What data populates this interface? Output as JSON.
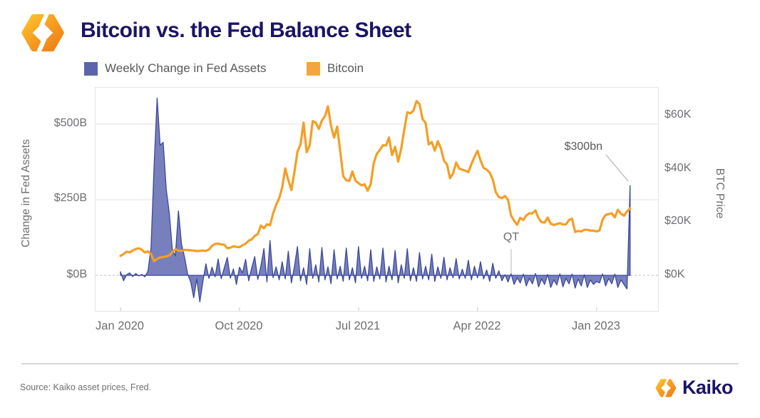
{
  "header": {
    "title": "Bitcoin vs. the Fed Balance Sheet"
  },
  "legend": [
    {
      "label": "Weekly Change in Fed Assets",
      "color": "#5a65ab"
    },
    {
      "label": "Bitcoin",
      "color": "#f5a53d"
    }
  ],
  "chart_data": {
    "type": "line",
    "subtype": "combo-area-line",
    "title": "Bitcoin vs. the Fed Balance Sheet",
    "x": {
      "unit": "weeks since Jan 2020",
      "label_ticks": [
        "Jan 2020",
        "Oct 2020",
        "Jul 2021",
        "Apr 2022",
        "Jan 2023"
      ],
      "tick_weeks": [
        0,
        39,
        78,
        117,
        156
      ],
      "total_weeks": 168
    },
    "y_left": {
      "label": "Change in Fed Assets",
      "ticks": [
        "$500B",
        "$250B",
        "$0B"
      ],
      "tick_values": [
        500,
        250,
        0
      ],
      "range": [
        -110,
        620
      ],
      "grid": "solid at 250 and 500, dashed at 0"
    },
    "y_right": {
      "label": "BTC Price",
      "ticks": [
        "$60K",
        "$40K",
        "$20K",
        "$0K"
      ],
      "tick_values": [
        60,
        40,
        20,
        0
      ],
      "range": [
        -33,
        70
      ]
    },
    "series": [
      {
        "name": "Weekly Change in Fed Assets",
        "type": "area",
        "axis": "left",
        "unit": "$B",
        "color": "#6b75b7",
        "stroke": "#3c489c",
        "values": [
          12,
          -18,
          2,
          8,
          -4,
          6,
          -2,
          3,
          -5,
          14,
          90,
          360,
          586,
          430,
          440,
          285,
          205,
          83,
          65,
          213,
          103,
          60,
          4,
          -21,
          -74,
          -12,
          -88,
          -20,
          38,
          -10,
          27,
          -5,
          54,
          -11,
          24,
          59,
          -9,
          21,
          -30,
          27,
          8,
          53,
          -18,
          24,
          62,
          -14,
          31,
          89,
          -22,
          115,
          -8,
          28,
          -15,
          45,
          -12,
          80,
          -25,
          30,
          95,
          -18,
          25,
          -30,
          88,
          -10,
          35,
          -22,
          92,
          -15,
          28,
          -28,
          85,
          -12,
          30,
          -20,
          90,
          -15,
          25,
          -25,
          95,
          -10,
          30,
          -18,
          85,
          -20,
          28,
          -12,
          90,
          -22,
          30,
          -15,
          82,
          -25,
          35,
          -10,
          88,
          -18,
          25,
          -20,
          75,
          -12,
          30,
          -15,
          70,
          -20,
          28,
          -10,
          60,
          -15,
          25,
          -8,
          55,
          -12,
          20,
          -10,
          50,
          -15,
          30,
          -8,
          45,
          -12,
          18,
          -20,
          40,
          -10,
          15,
          -18,
          2,
          -22,
          5,
          -30,
          -8,
          -25,
          4,
          -35,
          -10,
          -28,
          6,
          -38,
          -12,
          -30,
          3,
          -40,
          -15,
          -32,
          5,
          -38,
          -10,
          -28,
          4,
          -42,
          -12,
          -35,
          2,
          -40,
          -15,
          -30,
          -20,
          -25,
          5,
          -35,
          -10,
          -28,
          4,
          -40,
          -15,
          -30,
          -45,
          297
        ]
      },
      {
        "name": "Bitcoin",
        "type": "line",
        "axis": "right",
        "unit": "$K",
        "color": "#f59e24",
        "values": [
          7.3,
          8.0,
          8.9,
          8.6,
          9.3,
          9.9,
          10.2,
          9.6,
          8.6,
          9.0,
          8.0,
          5.3,
          6.2,
          6.7,
          6.9,
          7.1,
          7.5,
          8.8,
          9.8,
          9.3,
          9.2,
          9.6,
          9.5,
          9.4,
          9.3,
          9.1,
          9.2,
          9.3,
          9.2,
          9.7,
          11.1,
          11.8,
          11.9,
          11.6,
          11.5,
          10.2,
          10.4,
          10.9,
          10.7,
          10.6,
          11.3,
          11.9,
          13.0,
          13.5,
          14.8,
          15.5,
          18.7,
          17.7,
          19.2,
          18.8,
          23.2,
          26.5,
          29.0,
          33.0,
          40.2,
          35.8,
          32.1,
          38.9,
          46.4,
          49.2,
          57.4,
          46.3,
          48.9,
          58.0,
          57.4,
          55.0,
          58.2,
          59.8,
          63.5,
          56.2,
          51.8,
          55.9,
          46.7,
          37.3,
          35.7,
          35.5,
          39.0,
          35.6,
          34.7,
          33.8,
          34.2,
          31.8,
          34.3,
          42.2,
          45.6,
          47.1,
          48.9,
          48.8,
          51.8,
          45.2,
          48.3,
          42.7,
          47.7,
          54.7,
          61.3,
          60.9,
          61.9,
          65.5,
          64.4,
          58.7,
          57.3,
          49.2,
          50.1,
          46.9,
          50.4,
          47.7,
          43.1,
          41.7,
          36.5,
          38.3,
          42.4,
          40.1,
          39.7,
          39.3,
          38.8,
          41.8,
          44.5,
          46.8,
          43.2,
          40.4,
          39.7,
          38.6,
          36.0,
          31.3,
          29.4,
          29.0,
          29.8,
          28.4,
          22.5,
          20.5,
          19.0,
          21.6,
          20.8,
          22.5,
          23.3,
          23.3,
          24.4,
          21.5,
          20.0,
          19.8,
          21.7,
          19.4,
          18.9,
          19.3,
          19.6,
          19.1,
          19.2,
          20.8,
          21.3,
          16.3,
          16.7,
          16.5,
          17.1,
          17.1,
          16.8,
          16.8,
          16.5,
          16.9,
          20.9,
          22.7,
          23.0,
          23.3,
          21.8,
          24.6,
          23.2,
          22.4,
          24.0,
          25.2
        ]
      }
    ],
    "annotations": [
      {
        "text": "$300bn",
        "target": "final Fed assets spike, ~$297B, Mar 2023"
      },
      {
        "text": "QT",
        "target": "start of quantitative tightening, ~Jun 2022"
      }
    ],
    "legend_position": "top-left",
    "grid": "horizontal only"
  },
  "footer": {
    "source": "Source: Kaiko asset prices, Fred.",
    "brand": "Kaiko"
  }
}
